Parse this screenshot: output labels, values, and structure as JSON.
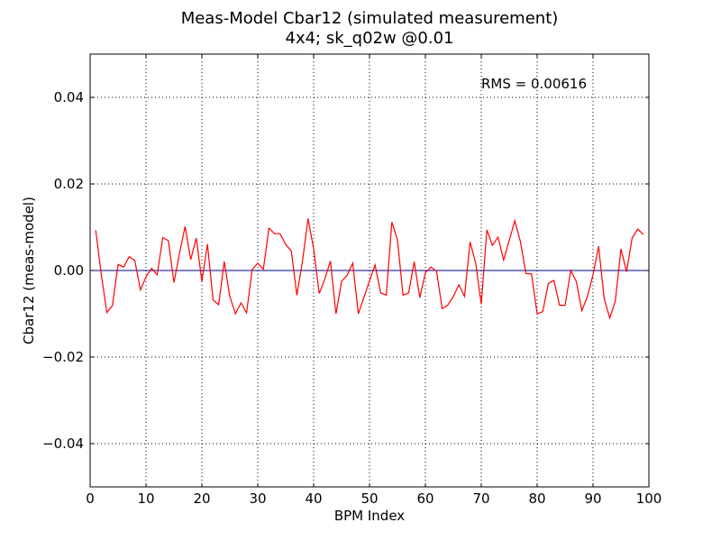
{
  "chart_data": {
    "type": "line",
    "title": "Meas-Model Cbar12 (simulated measurement)",
    "subtitle": "4x4; sk_q02w @0.01",
    "xlabel": "BPM Index",
    "ylabel": "Cbar12 (meas-model)",
    "xlim": [
      0,
      100
    ],
    "ylim": [
      -0.05,
      0.05
    ],
    "xticks": [
      0,
      10,
      20,
      30,
      40,
      50,
      60,
      70,
      80,
      90,
      100
    ],
    "yticks": [
      0.04,
      0.02,
      0.0,
      -0.02,
      -0.04
    ],
    "xtick_labels": [
      "0",
      "10",
      "20",
      "30",
      "40",
      "50",
      "60",
      "70",
      "80",
      "90",
      "100"
    ],
    "ytick_labels": [
      "0.04",
      "0.02",
      "0.00",
      "−0.02",
      "−0.04"
    ],
    "grid": true,
    "annotation": "RMS = 0.00616",
    "colors": {
      "series": "#ff0000",
      "zero_line": "#00008b",
      "grid": "#000000"
    },
    "series": [
      {
        "x": [
          1,
          2,
          3,
          4,
          5,
          6,
          7,
          8,
          9,
          10,
          11,
          12,
          13,
          14,
          15,
          16,
          17,
          18,
          19,
          20,
          21,
          22,
          23,
          24,
          25,
          26,
          27,
          28,
          29,
          30,
          31,
          32,
          33,
          34,
          35,
          36,
          37,
          38,
          39,
          40,
          41,
          42,
          43,
          44,
          45,
          46,
          47,
          48,
          49,
          50,
          51,
          52,
          53,
          54,
          55,
          56,
          57,
          58,
          59,
          60,
          61,
          62,
          63,
          64,
          65,
          66,
          67,
          68,
          69,
          70,
          71,
          72,
          73,
          74,
          75,
          76,
          77,
          78,
          79,
          80,
          81,
          82,
          83,
          84,
          85,
          86,
          87,
          88,
          89,
          90,
          91,
          92,
          93,
          94,
          95,
          96,
          97,
          98,
          99
        ],
        "y": [
          0.0093,
          -0.001,
          -0.0097,
          -0.0081,
          0.0014,
          0.0008,
          0.0032,
          0.0023,
          -0.0045,
          -0.0015,
          0.0005,
          -0.001,
          0.0076,
          0.0069,
          -0.0028,
          0.004,
          0.0102,
          0.0025,
          0.0075,
          -0.0025,
          0.0061,
          -0.0068,
          -0.0079,
          0.0021,
          -0.006,
          -0.01,
          -0.0075,
          -0.0098,
          0.0002,
          0.0017,
          0.0003,
          0.0098,
          0.0085,
          0.0085,
          0.006,
          0.0045,
          -0.0057,
          0.0021,
          0.012,
          0.005,
          -0.0053,
          -0.002,
          0.0022,
          -0.01,
          -0.0025,
          -0.0011,
          0.0017,
          -0.01,
          -0.0062,
          -0.0024,
          0.0013,
          -0.0052,
          -0.0057,
          0.0112,
          0.0071,
          -0.0057,
          -0.0052,
          0.002,
          -0.0063,
          -0.0005,
          0.0008,
          -0.0002,
          -0.0088,
          -0.008,
          -0.006,
          -0.0033,
          -0.006,
          0.0066,
          0.0017,
          -0.0078,
          0.0094,
          0.0058,
          0.0077,
          0.0024,
          0.0069,
          0.0115,
          0.0067,
          -0.0007,
          -0.0008,
          -0.01,
          -0.0095,
          -0.003,
          -0.0023,
          -0.008,
          -0.0081,
          0.0,
          -0.0025,
          -0.0093,
          -0.006,
          -0.001,
          0.0056,
          -0.0065,
          -0.011,
          -0.007,
          0.005,
          -0.0003,
          0.0075,
          0.0096,
          0.0083
        ]
      }
    ]
  }
}
